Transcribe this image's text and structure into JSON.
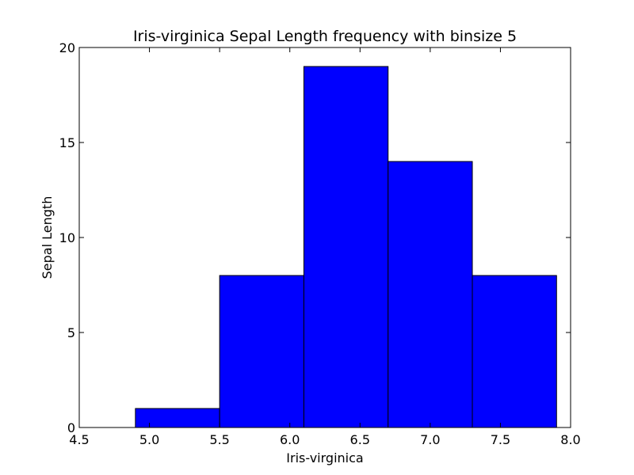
{
  "chart_data": {
    "type": "bar",
    "title": "Iris-virginica Sepal Length frequency with binsize 5",
    "xlabel": "Iris-virginica",
    "ylabel": "Sepal Length",
    "bins": [
      {
        "start": 4.9,
        "end": 5.5,
        "value": 1
      },
      {
        "start": 5.5,
        "end": 6.1,
        "value": 8
      },
      {
        "start": 6.1,
        "end": 6.7,
        "value": 19
      },
      {
        "start": 6.7,
        "end": 7.3,
        "value": 14
      },
      {
        "start": 7.3,
        "end": 7.9,
        "value": 8
      }
    ],
    "xlim": [
      4.5,
      8.0
    ],
    "ylim": [
      0,
      20
    ],
    "x_ticks": [
      4.5,
      5.0,
      5.5,
      6.0,
      6.5,
      7.0,
      7.5,
      8.0
    ],
    "x_tick_labels": [
      "4.5",
      "5.0",
      "5.5",
      "6.0",
      "6.5",
      "7.0",
      "7.5",
      "8.0"
    ],
    "y_ticks": [
      0,
      5,
      10,
      15,
      20
    ],
    "y_tick_labels": [
      "0",
      "5",
      "10",
      "15",
      "20"
    ],
    "grid": false,
    "colors": {
      "bar_fill": "#0000ff",
      "bar_edge": "#000000",
      "axes": "#000000",
      "background": "#ffffff"
    }
  }
}
